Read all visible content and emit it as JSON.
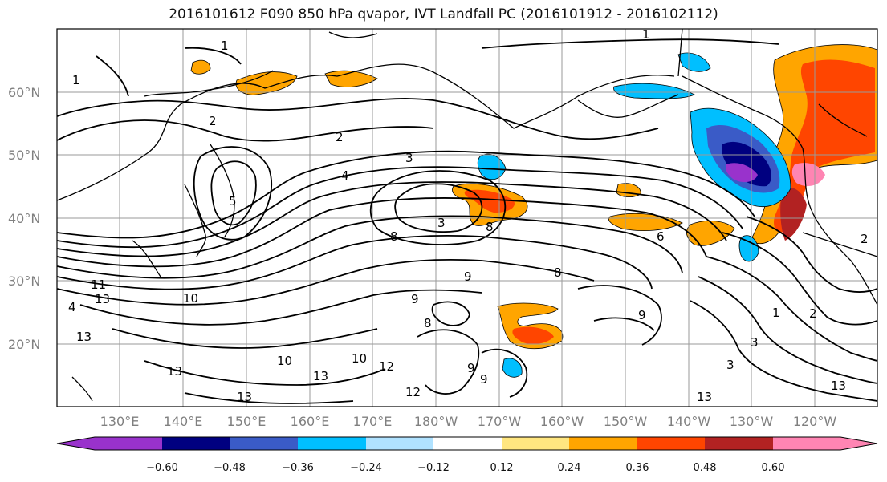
{
  "title": "2016101612 F090 850 hPa qvapor, IVT Landfall PC (2016101912 - 2016102112)",
  "lat_labels": [
    "60°N",
    "50°N",
    "40°N",
    "30°N",
    "20°N"
  ],
  "lon_labels": [
    "130°E",
    "140°E",
    "150°E",
    "160°E",
    "170°E",
    "180°W",
    "170°W",
    "160°W",
    "150°W",
    "140°W",
    "130°W",
    "120°W"
  ],
  "colorbar": {
    "ticks": [
      "−0.60",
      "−0.48",
      "−0.36",
      "−0.24",
      "−0.12",
      "0.12",
      "0.24",
      "0.36",
      "0.48",
      "0.60"
    ],
    "colors": [
      "#9932cc",
      "#000080",
      "#3a5bc7",
      "#00bfff",
      "#b0e2ff",
      "#ffffff",
      "#ffe680",
      "#ffa500",
      "#ff4500",
      "#b22222",
      "#ff85b3"
    ]
  },
  "contour_labels": [
    "1",
    "1",
    "1",
    "1",
    "2",
    "2",
    "2",
    "2",
    "3",
    "3",
    "3",
    "3",
    "4",
    "4",
    "5",
    "6",
    "8",
    "8",
    "8",
    "9",
    "9",
    "9",
    "10",
    "10",
    "10",
    "11",
    "12",
    "12",
    "13",
    "13",
    "13",
    "13",
    "13",
    "13",
    "13",
    "8",
    "9",
    "9"
  ],
  "shading": {
    "positive_color": "#ffa500",
    "strong_positive_color": "#ff4500",
    "max_color": "#ff85b3",
    "negative_color": "#00bfff",
    "strong_negative_color": "#000080",
    "min_color": "#9932cc"
  }
}
